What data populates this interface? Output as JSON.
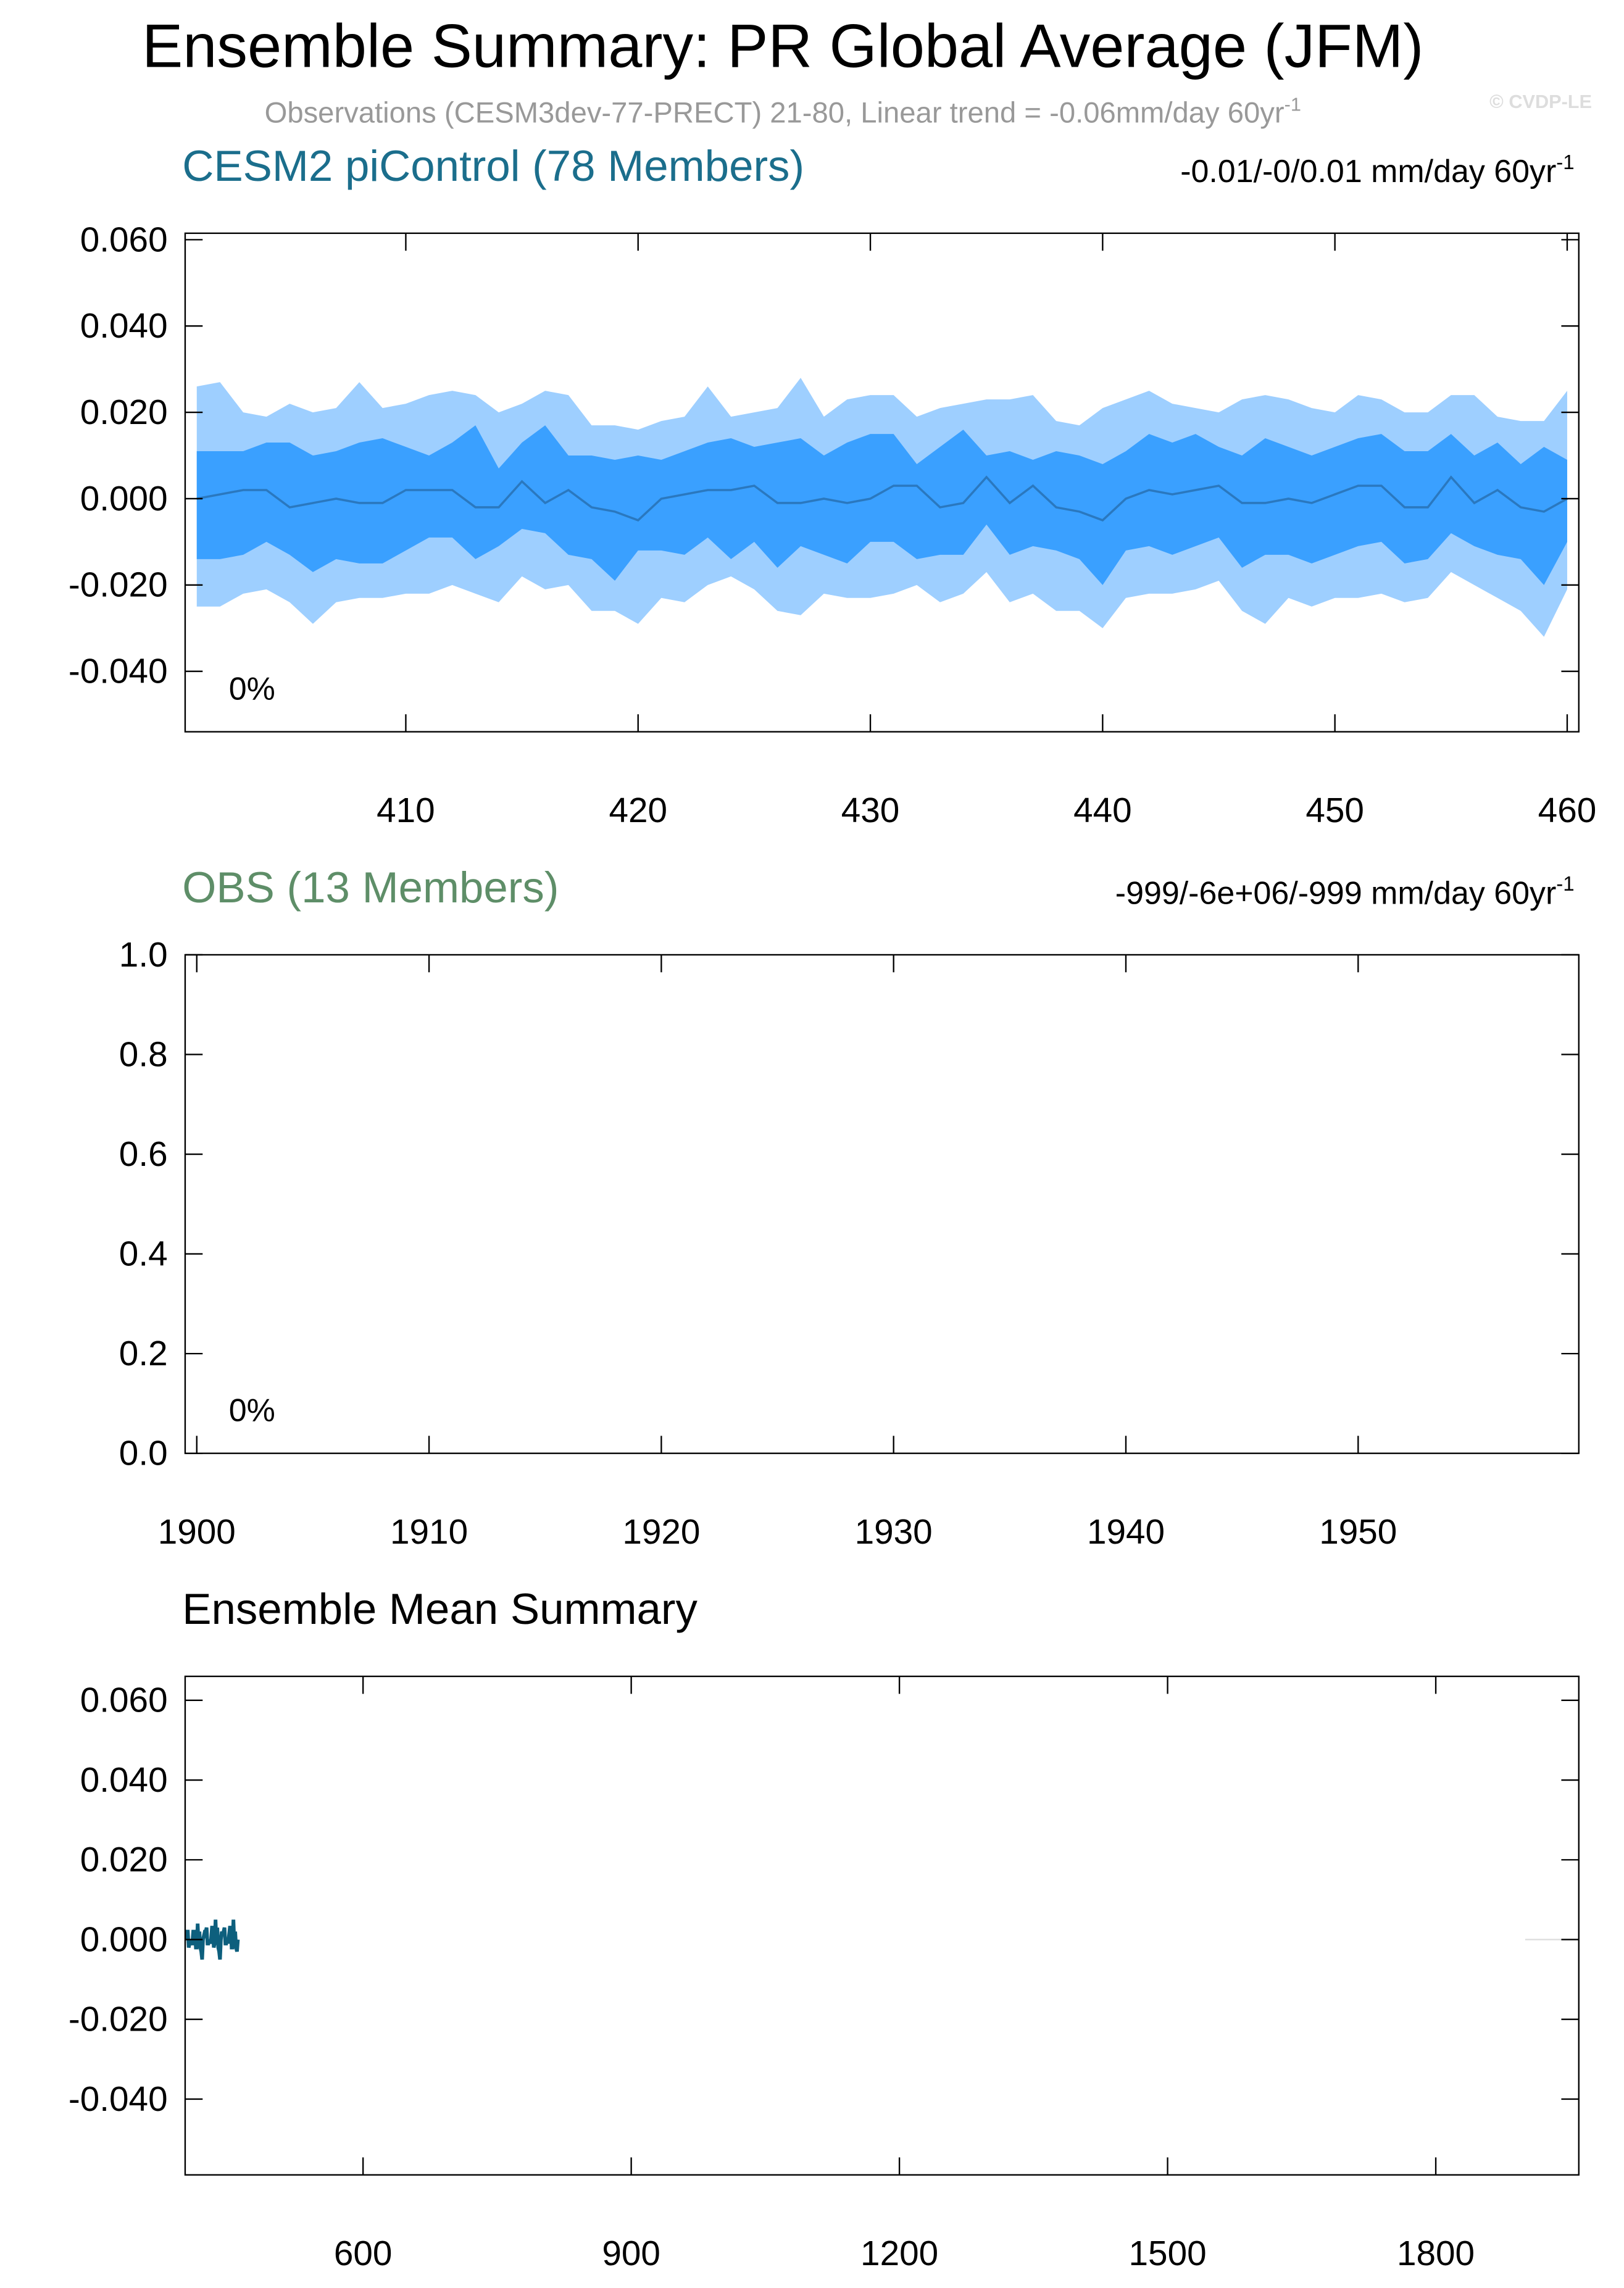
{
  "title": "Ensemble Summary: PR Global Average (JFM)",
  "subtitle": "Observations (CESM3dev-77-PRECT) 21-80, Linear trend = -0.06mm/day 60yr",
  "subtitle_sup": "-1",
  "credit": "© CVDP-LE",
  "chart_data": [
    {
      "type": "band",
      "title": "CESM2 piControl (78 Members)",
      "title_color": "#1b6e8c",
      "trend_label": "-0.01/-0/0.01 mm/day 60yr",
      "trend_sup": "-1",
      "annotation": "0%",
      "x": [
        401,
        402,
        403,
        404,
        405,
        406,
        407,
        408,
        409,
        410,
        411,
        412,
        413,
        414,
        415,
        416,
        417,
        418,
        419,
        420,
        421,
        422,
        423,
        424,
        425,
        426,
        427,
        428,
        429,
        430,
        431,
        432,
        433,
        434,
        435,
        436,
        437,
        438,
        439,
        440,
        441,
        442,
        443,
        444,
        445,
        446,
        447,
        448,
        449,
        450,
        451,
        452,
        453,
        454,
        455,
        456,
        457,
        458,
        459,
        460
      ],
      "xlim": [
        400.5,
        460.5
      ],
      "xticks": [
        410,
        420,
        430,
        440,
        450,
        460
      ],
      "ylim": [
        -0.054,
        0.0615
      ],
      "yticks": [
        {
          "value": -0.04,
          "label": "-0.040"
        },
        {
          "value": -0.02,
          "label": "-0.020"
        },
        {
          "value": 0,
          "label": "0.000"
        },
        {
          "value": 0.02,
          "label": "0.020"
        },
        {
          "value": 0.04,
          "label": "0.040"
        },
        {
          "value": 0.06,
          "label": "0.060"
        }
      ],
      "bands": [
        {
          "color": "#9ecfff",
          "upper": [
            0.026,
            0.027,
            0.02,
            0.019,
            0.022,
            0.02,
            0.021,
            0.027,
            0.021,
            0.022,
            0.024,
            0.025,
            0.024,
            0.02,
            0.022,
            0.025,
            0.024,
            0.017,
            0.017,
            0.016,
            0.018,
            0.019,
            0.026,
            0.019,
            0.02,
            0.021,
            0.028,
            0.019,
            0.023,
            0.024,
            0.024,
            0.019,
            0.021,
            0.022,
            0.023,
            0.023,
            0.024,
            0.018,
            0.017,
            0.021,
            0.023,
            0.025,
            0.022,
            0.021,
            0.02,
            0.023,
            0.024,
            0.023,
            0.021,
            0.02,
            0.024,
            0.023,
            0.02,
            0.02,
            0.024,
            0.024,
            0.019,
            0.018,
            0.018,
            0.025
          ],
          "lower": [
            -0.025,
            -0.025,
            -0.022,
            -0.021,
            -0.024,
            -0.029,
            -0.024,
            -0.023,
            -0.023,
            -0.022,
            -0.022,
            -0.02,
            -0.022,
            -0.024,
            -0.018,
            -0.021,
            -0.02,
            -0.026,
            -0.026,
            -0.029,
            -0.023,
            -0.024,
            -0.02,
            -0.018,
            -0.021,
            -0.026,
            -0.027,
            -0.022,
            -0.023,
            -0.023,
            -0.022,
            -0.02,
            -0.024,
            -0.022,
            -0.017,
            -0.024,
            -0.022,
            -0.026,
            -0.026,
            -0.03,
            -0.023,
            -0.022,
            -0.022,
            -0.021,
            -0.019,
            -0.026,
            -0.029,
            -0.023,
            -0.025,
            -0.023,
            -0.023,
            -0.022,
            -0.024,
            -0.023,
            -0.017,
            -0.02,
            -0.023,
            -0.026,
            -0.032,
            -0.021
          ]
        },
        {
          "color": "#3aa0ff",
          "upper": [
            0.011,
            0.011,
            0.011,
            0.013,
            0.013,
            0.01,
            0.011,
            0.013,
            0.014,
            0.012,
            0.01,
            0.013,
            0.017,
            0.007,
            0.013,
            0.017,
            0.01,
            0.01,
            0.009,
            0.01,
            0.009,
            0.011,
            0.013,
            0.014,
            0.012,
            0.013,
            0.014,
            0.01,
            0.013,
            0.015,
            0.015,
            0.008,
            0.012,
            0.016,
            0.01,
            0.011,
            0.009,
            0.011,
            0.01,
            0.008,
            0.011,
            0.015,
            0.013,
            0.015,
            0.012,
            0.01,
            0.014,
            0.012,
            0.01,
            0.012,
            0.014,
            0.015,
            0.011,
            0.011,
            0.015,
            0.01,
            0.013,
            0.008,
            0.012,
            0.009
          ],
          "lower": [
            -0.014,
            -0.014,
            -0.013,
            -0.01,
            -0.013,
            -0.017,
            -0.014,
            -0.015,
            -0.015,
            -0.012,
            -0.009,
            -0.009,
            -0.014,
            -0.011,
            -0.007,
            -0.008,
            -0.013,
            -0.014,
            -0.019,
            -0.012,
            -0.012,
            -0.013,
            -0.009,
            -0.014,
            -0.01,
            -0.016,
            -0.011,
            -0.013,
            -0.015,
            -0.01,
            -0.01,
            -0.014,
            -0.013,
            -0.013,
            -0.006,
            -0.013,
            -0.011,
            -0.012,
            -0.014,
            -0.02,
            -0.012,
            -0.011,
            -0.013,
            -0.011,
            -0.009,
            -0.016,
            -0.013,
            -0.013,
            -0.015,
            -0.013,
            -0.011,
            -0.01,
            -0.015,
            -0.014,
            -0.008,
            -0.011,
            -0.013,
            -0.014,
            -0.02,
            -0.01
          ]
        }
      ],
      "series": [
        {
          "color": "#2a78bf",
          "width": 1.5,
          "x": [
            401,
            402,
            403,
            404,
            405,
            406,
            407,
            408,
            409,
            410,
            411,
            412,
            413,
            414,
            415,
            416,
            417,
            418,
            419,
            420,
            421,
            422,
            423,
            424,
            425,
            426,
            427,
            428,
            429,
            430,
            431,
            432,
            433,
            434,
            435,
            436,
            437,
            438,
            439,
            440,
            441,
            442,
            443,
            444,
            445,
            446,
            447,
            448,
            449,
            450,
            451,
            452,
            453,
            454,
            455,
            456,
            457,
            458,
            459,
            460
          ],
          "values": [
            0.0,
            0.001,
            0.002,
            0.002,
            -0.002,
            -0.001,
            0.0,
            -0.001,
            -0.001,
            0.002,
            0.002,
            0.002,
            -0.002,
            -0.002,
            0.004,
            -0.001,
            0.002,
            -0.002,
            -0.003,
            -0.005,
            0.0,
            0.001,
            0.002,
            0.002,
            0.003,
            -0.001,
            -0.001,
            0.0,
            -0.001,
            0.0,
            0.003,
            0.003,
            -0.002,
            -0.001,
            0.005,
            -0.001,
            0.003,
            -0.002,
            -0.003,
            -0.005,
            0.0,
            0.002,
            0.001,
            0.002,
            0.003,
            -0.001,
            -0.001,
            0.0,
            -0.001,
            0.001,
            0.003,
            0.003,
            -0.002,
            -0.002,
            0.005,
            -0.001,
            0.002,
            -0.002,
            -0.003,
            0.0
          ]
        }
      ]
    },
    {
      "type": "band",
      "title": "OBS (13 Members)",
      "title_color": "#5e8e68",
      "trend_label": "-999/-6e+06/-999 mm/day 60yr",
      "trend_sup": "-1",
      "annotation": "0%",
      "xlim": [
        1899.5,
        1959.5
      ],
      "xticks": [
        1900,
        1910,
        1920,
        1930,
        1940,
        1950
      ],
      "ylim": [
        0,
        1
      ],
      "yticks": [
        {
          "value": 0,
          "label": "0.0"
        },
        {
          "value": 0.2,
          "label": "0.2"
        },
        {
          "value": 0.4,
          "label": "0.4"
        },
        {
          "value": 0.6,
          "label": "0.6"
        },
        {
          "value": 0.8,
          "label": "0.8"
        },
        {
          "value": 1,
          "label": "1.0"
        }
      ],
      "bands": [],
      "series": []
    },
    {
      "type": "band",
      "title": "Ensemble Mean Summary",
      "title_color": "#000000",
      "xlim": [
        401,
        1960
      ],
      "xticks": [
        600,
        900,
        1200,
        1500,
        1800
      ],
      "ylim": [
        -0.059,
        0.066
      ],
      "yticks": [
        {
          "value": -0.04,
          "label": "-0.040"
        },
        {
          "value": -0.02,
          "label": "-0.020"
        },
        {
          "value": 0,
          "label": "0.000"
        },
        {
          "value": 0.02,
          "label": "0.020"
        },
        {
          "value": 0.04,
          "label": "0.040"
        },
        {
          "value": 0.06,
          "label": "0.060"
        }
      ],
      "bands": [],
      "series": [
        {
          "color": "#0d5f7d",
          "width": 2.5,
          "x": [
            401,
            402,
            403,
            404,
            405,
            406,
            407,
            408,
            409,
            410,
            411,
            412,
            413,
            414,
            415,
            416,
            417,
            418,
            419,
            420,
            421,
            422,
            423,
            424,
            425,
            426,
            427,
            428,
            429,
            430,
            431,
            432,
            433,
            434,
            435,
            436,
            437,
            438,
            439,
            440,
            441,
            442,
            443,
            444,
            445,
            446,
            447,
            448,
            449,
            450,
            451,
            452,
            453,
            454,
            455,
            456,
            457,
            458,
            459,
            460
          ],
          "values": [
            0.0,
            0.001,
            0.002,
            0.002,
            -0.002,
            -0.001,
            0.0,
            -0.001,
            -0.001,
            0.002,
            0.002,
            0.002,
            -0.002,
            -0.002,
            0.004,
            -0.001,
            0.002,
            -0.002,
            -0.003,
            -0.005,
            0.0,
            0.001,
            0.002,
            0.002,
            0.003,
            -0.001,
            -0.001,
            0.0,
            -0.001,
            0.0,
            0.003,
            0.003,
            -0.002,
            -0.001,
            0.005,
            -0.001,
            0.003,
            -0.002,
            -0.003,
            -0.005,
            0.0,
            0.002,
            0.001,
            0.002,
            0.003,
            -0.001,
            -0.001,
            0.0,
            -0.001,
            0.001,
            0.003,
            0.003,
            -0.002,
            -0.002,
            0.005,
            -0.001,
            0.002,
            -0.002,
            -0.003,
            0.0
          ]
        },
        {
          "color": "#dddddd",
          "width": 1,
          "x": [
            1900,
            1959
          ],
          "values": [
            0,
            0
          ]
        }
      ]
    }
  ]
}
